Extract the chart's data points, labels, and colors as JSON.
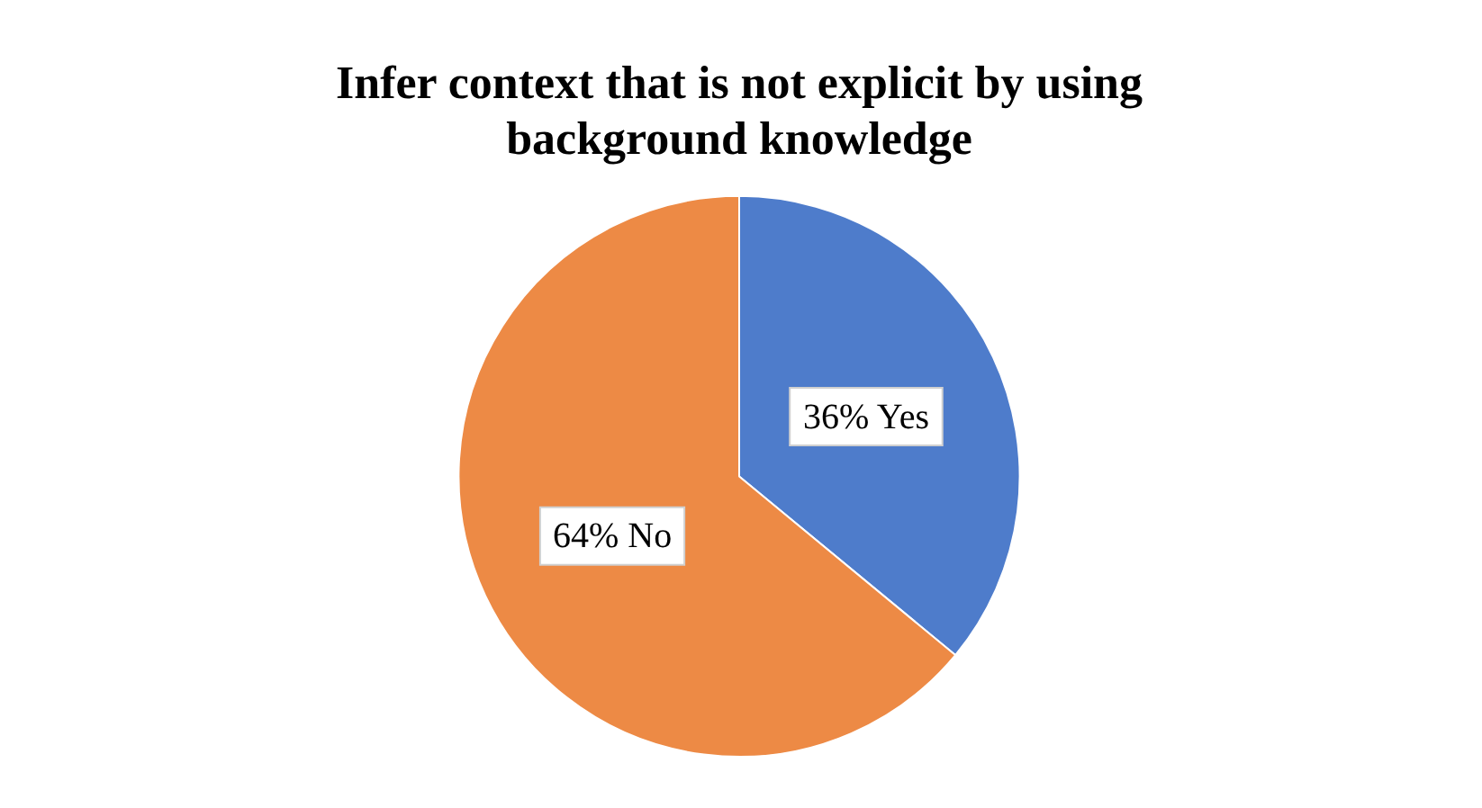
{
  "chart_data": {
    "type": "pie",
    "title": "Infer context that is not explicit by using background knowledge",
    "categories": [
      "Yes",
      "No"
    ],
    "values": [
      36,
      64
    ],
    "colors": [
      "#4e7ccb",
      "#ed8a45"
    ],
    "value_labels": [
      "36%",
      "64%"
    ],
    "legend": false
  }
}
